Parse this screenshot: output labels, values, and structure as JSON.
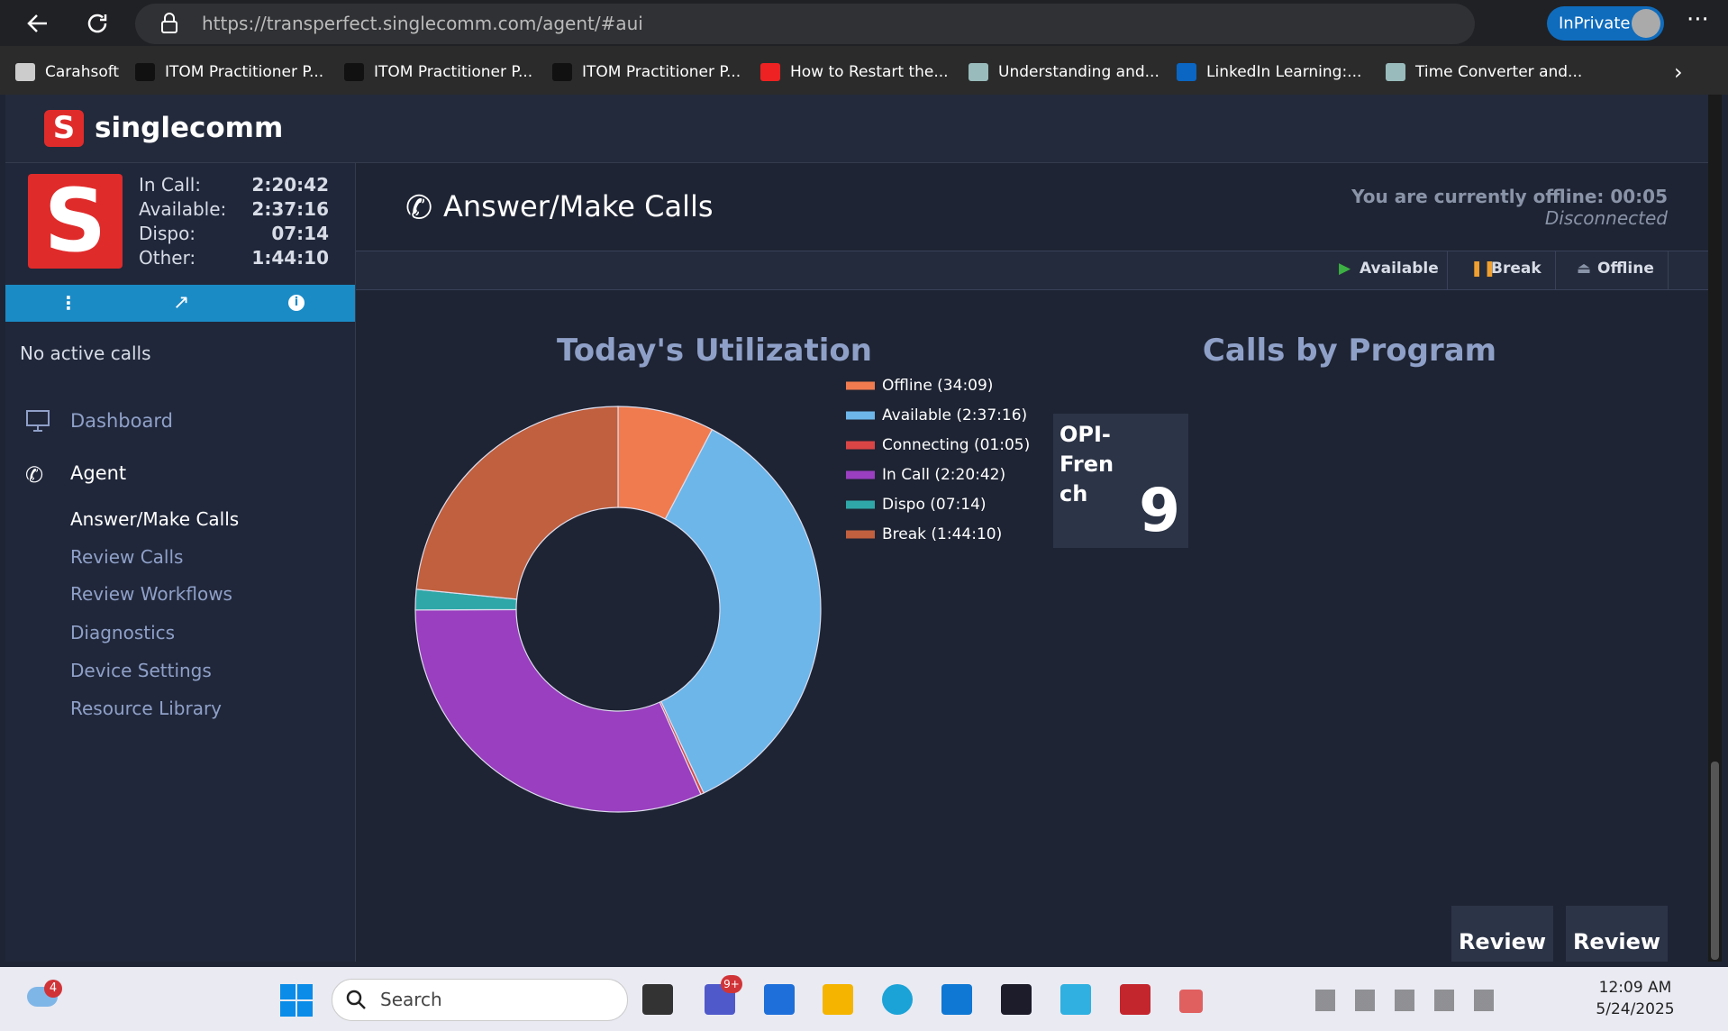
{
  "browser": {
    "url": "https://transperfect.singlecomm.com/agent/#aui",
    "profile": "InPrivate",
    "bookmarks": [
      "Carahsoft",
      "ITOM Practitioner P...",
      "ITOM Practitioner P...",
      "ITOM Practitioner P...",
      "How to Restart the...",
      "Understanding and...",
      "LinkedIn Learning:...",
      "Time Converter and..."
    ]
  },
  "app": {
    "brand": "singlecomm",
    "stats": [
      {
        "label": "In Call:",
        "value": "2:20:42"
      },
      {
        "label": "Available:",
        "value": "2:37:16"
      },
      {
        "label": "Dispo:",
        "value": "07:14"
      },
      {
        "label": "Other:",
        "value": "1:44:10"
      }
    ],
    "no_calls": "No active calls",
    "nav": [
      "Dashboard",
      "Agent"
    ],
    "subnav": [
      "Answer/Make Calls",
      "Review Calls",
      "Review Workflows",
      "Diagnostics",
      "Device Settings",
      "Resource Library"
    ],
    "page_title": "Answer/Make Calls",
    "offline_status": "You are currently offline: 00:05",
    "connection": "Disconnected",
    "status_buttons": [
      "Available",
      "Break",
      "Offline"
    ],
    "review_buttons": [
      "Review",
      "Review"
    ]
  },
  "chart_data": {
    "type": "pie",
    "donut": true,
    "title": "Today's Utilization",
    "categories": [
      "Offline (34:09)",
      "Available (2:37:16)",
      "Connecting (01:05)",
      "In Call (2:20:42)",
      "Dispo (07:14)",
      "Break (1:44:10)"
    ],
    "values": [
      2049,
      9436,
      65,
      8442,
      434,
      6250
    ],
    "colors": [
      "#f07b4f",
      "#6cb6ea",
      "#d94545",
      "#9a3fbf",
      "#2fa7a8",
      "#c0603f"
    ]
  },
  "program_panel": {
    "title": "Calls by Program",
    "card": {
      "name": "OPI-French",
      "count": 9
    }
  },
  "taskbar": {
    "search": "Search",
    "weather_badge": "4",
    "teams_badge": "9+",
    "time": "12:09 AM",
    "date": "5/24/2025"
  }
}
